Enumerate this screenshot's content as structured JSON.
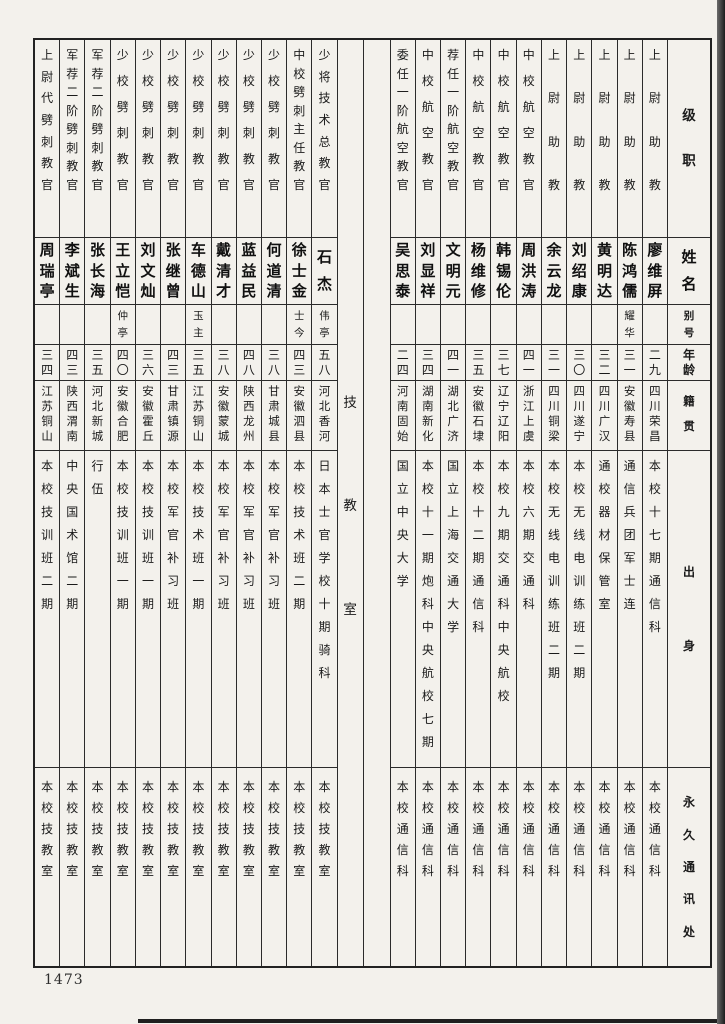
{
  "page": {
    "number": "1473"
  },
  "section_title": "技教室",
  "colors": {
    "paper": "#f3f1ec",
    "line": "#2b2b2b",
    "ink": "#1a1a1a"
  },
  "headers": {
    "rank": "级职",
    "name": "姓名",
    "alias": "别号",
    "age": "年龄",
    "native": "籍贯",
    "origin": "出身",
    "address": "永久通讯处"
  },
  "right_group": [
    {
      "rank": "上尉助教",
      "name": "廖维屏",
      "alias": "",
      "age": "二九",
      "native": "四川荣昌",
      "origin": "本校十七期通信科",
      "address": "本校通信科"
    },
    {
      "rank": "上尉助教",
      "name": "陈鸿儒",
      "alias": "耀华",
      "age": "三一",
      "native": "安徽寿县",
      "origin": "通信兵团军士连",
      "address": "本校通信科"
    },
    {
      "rank": "上尉助教",
      "name": "黄明达",
      "alias": "",
      "age": "三二",
      "native": "四川广汉",
      "origin": "通校器材保管室",
      "address": "本校通信科"
    },
    {
      "rank": "上尉助教",
      "name": "刘绍康",
      "alias": "",
      "age": "三〇",
      "native": "四川遂宁",
      "origin": "本校无线电训练班二期",
      "address": "本校通信科"
    },
    {
      "rank": "上尉助教",
      "name": "余云龙",
      "alias": "",
      "age": "三一",
      "native": "四川铜梁",
      "origin": "本校无线电训练班二期",
      "address": "本校通信科"
    },
    {
      "rank": "中校航空教官",
      "name": "周洪涛",
      "alias": "",
      "age": "四一",
      "native": "浙江上虞",
      "origin": "本校六期交通科",
      "address": "本校通信科"
    },
    {
      "rank": "中校航空教官",
      "name": "韩锡伦",
      "alias": "",
      "age": "三七",
      "native": "辽宁辽阳",
      "origin": "本校九期交通科中央航校",
      "address": "本校通信科"
    },
    {
      "rank": "中校航空教官",
      "name": "杨维修",
      "alias": "",
      "age": "三五",
      "native": "安徽石埭",
      "origin": "本校十二期通信科",
      "address": "本校通信科"
    },
    {
      "rank": "荐任一阶航空教官",
      "name": "文明元",
      "alias": "",
      "age": "四一",
      "native": "湖北广济",
      "origin": "国立上海交通大学",
      "address": "本校通信科"
    },
    {
      "rank": "中校航空教官",
      "name": "刘显祥",
      "alias": "",
      "age": "三四",
      "native": "湖南新化",
      "origin": "本校十一期炮科中央航校七期",
      "address": "本校通信科"
    },
    {
      "rank": "委任一阶航空教官",
      "name": "吴思泰",
      "alias": "",
      "age": "二四",
      "native": "河南固始",
      "origin": "国立中央大学",
      "address": "本校通信科"
    }
  ],
  "left_group": [
    {
      "rank": "少将技术总教官",
      "name": "石杰",
      "alias": "伟亭",
      "age": "五八",
      "native": "河北香河",
      "origin": "日本士官学校十期骑科",
      "address": "本校技教室"
    },
    {
      "rank": "中校劈刺主任教官",
      "name": "徐士金",
      "alias": "士今",
      "age": "四三",
      "native": "安徽泗县",
      "origin": "本校技术班二期",
      "address": "本校技教室"
    },
    {
      "rank": "少校劈刺教官",
      "name": "何道清",
      "alias": "",
      "age": "三八",
      "native": "甘肃城县",
      "origin": "本校军官补习班",
      "address": "本校技教室"
    },
    {
      "rank": "少校劈刺教官",
      "name": "蓝益民",
      "alias": "",
      "age": "四八",
      "native": "陕西龙州",
      "origin": "本校军官补习班",
      "address": "本校技教室"
    },
    {
      "rank": "少校劈刺教官",
      "name": "戴清才",
      "alias": "",
      "age": "三八",
      "native": "安徽蒙城",
      "origin": "本校军官补习班",
      "address": "本校技教室"
    },
    {
      "rank": "少校劈刺教官",
      "name": "车德山",
      "alias": "玉主",
      "age": "三五",
      "native": "江苏铜山",
      "origin": "本校技术班一期",
      "address": "本校技教室"
    },
    {
      "rank": "少校劈刺教官",
      "name": "张继曾",
      "alias": "",
      "age": "四三",
      "native": "甘肃镇源",
      "origin": "本校军官补习班",
      "address": "本校技教室"
    },
    {
      "rank": "少校劈刺教官",
      "name": "刘文灿",
      "alias": "",
      "age": "三六",
      "native": "安徽霍丘",
      "origin": "本校技训班一期",
      "address": "本校技教室"
    },
    {
      "rank": "少校劈刺教官",
      "name": "王立恺",
      "alias": "仲亭",
      "age": "四〇",
      "native": "安徽合肥",
      "origin": "本校技训班一期",
      "address": "本校技教室"
    },
    {
      "rank": "军荐二阶劈刺教官",
      "name": "张长海",
      "alias": "",
      "age": "三五",
      "native": "河北新城",
      "origin": "行伍",
      "address": "本校技教室"
    },
    {
      "rank": "军荐二阶劈刺教官",
      "name": "李斌生",
      "alias": "",
      "age": "四三",
      "native": "陕西渭南",
      "origin": "中央国术馆二期",
      "address": "本校技教室"
    },
    {
      "rank": "上尉代劈刺教官",
      "name": "周瑞亭",
      "alias": "",
      "age": "三四",
      "native": "江苏铜山",
      "origin": "本校技训班二期",
      "address": "本校技教室"
    }
  ]
}
